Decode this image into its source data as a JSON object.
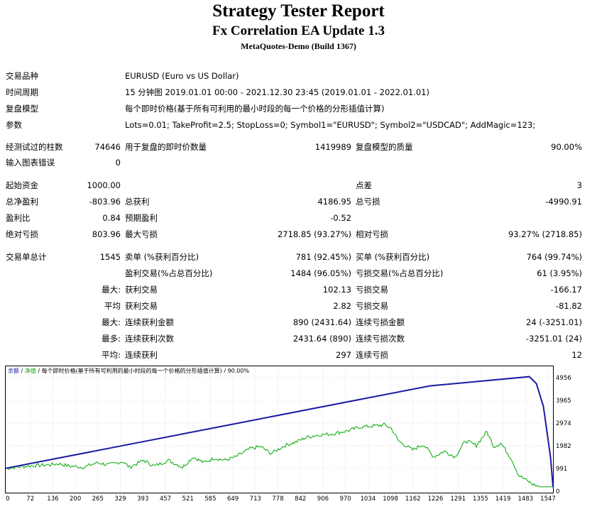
{
  "title": "Strategy Tester Report",
  "subtitle": "Fx Correlation EA Update 1.3",
  "build": "MetaQuotes-Demo (Build 1367)",
  "settings": {
    "symbol_label": "交易品种",
    "symbol_value": "EURUSD (Euro vs US Dollar)",
    "period_label": "时间周期",
    "period_value": "15 分钟图 2019.01.01 00:00 - 2021.12.30 23:45 (2019.01.01 - 2022.01.01)",
    "model_label": "复盘模型",
    "model_value": "每个即时价格(基于所有可利用的最小时段的每一个价格的分形插值计算)",
    "params_label": "参数",
    "params_value": "Lots=0.01; TakeProfit=2.5; StopLoss=0; Symbol1=\"EURUSD\"; Symbol2=\"USDCAD\"; AddMagic=123;"
  },
  "stats": {
    "bars_label": "经测试过的柱数",
    "bars_value": "74646",
    "ticks_label": "用于复盘的即时价数量",
    "ticks_value": "1419989",
    "quality_label": "复盘模型的质量",
    "quality_value": "90.00%",
    "errors_label": "输入图表错误",
    "errors_value": "0",
    "deposit_label": "起始资金",
    "deposit_value": "1000.00",
    "spread_label": "点差",
    "spread_value": "3",
    "net_label": "总净盈利",
    "net_value": "-803.96",
    "gross_profit_label": "总获利",
    "gross_profit_value": "4186.95",
    "gross_loss_label": "总亏损",
    "gross_loss_value": "-4990.91",
    "pf_label": "盈利比",
    "pf_value": "0.84",
    "payoff_label": "预期盈利",
    "payoff_value": "-0.52",
    "abs_dd_label": "绝对亏损",
    "abs_dd_value": "803.96",
    "max_dd_label": "最大亏损",
    "max_dd_value": "2718.85 (93.27%)",
    "rel_dd_label": "相对亏损",
    "rel_dd_value": "93.27% (2718.85)",
    "trades_label": "交易单总计",
    "trades_value": "1545",
    "short_label": "卖单 (%获利百分比)",
    "short_value": "781 (92.45%)",
    "long_label": "买单 (%获利百分比)",
    "long_value": "764 (99.74%)",
    "profit_trades_label": "盈利交易(%占总百分比)",
    "profit_trades_value": "1484 (96.05%)",
    "loss_trades_label": "亏损交易(%占总百分比)",
    "loss_trades_value": "61 (3.95%)",
    "max_prefix": "最大:",
    "largest_win_label": "获利交易",
    "largest_win_value": "102.13",
    "largest_loss_label": "亏损交易",
    "largest_loss_value": "-166.17",
    "avg_prefix": "平均",
    "avg_win_label": "获利交易",
    "avg_win_value": "2.82",
    "avg_loss_label": "亏损交易",
    "avg_loss_value": "-81.82",
    "max2_prefix": "最大:",
    "max_consec_win_amt_label": "连续获利金额",
    "max_consec_win_amt_value": "890 (2431.64)",
    "max_consec_loss_amt_label": "连续亏损金额",
    "max_consec_loss_amt_value": "24 (-3251.01)",
    "most_prefix": "最多:",
    "max_consec_win_cnt_label": "连续获利次数",
    "max_consec_win_cnt_value": "2431.64 (890)",
    "max_consec_loss_cnt_label": "连续亏损次数",
    "max_consec_loss_cnt_value": "-3251.01 (24)",
    "avg2_prefix": "平均:",
    "avg_consec_win_label": "连续获利",
    "avg_consec_win_value": "297",
    "avg_consec_loss_label": "连续亏损",
    "avg_consec_loss_value": "12"
  },
  "chart_legend": {
    "balance": "余额",
    "sep1": " / ",
    "equity": "净值",
    "rest": " / 每个即时价格(基于所有可利用的最小时段的每一个价格的分形插值计算) / 90.00%"
  },
  "colors": {
    "balance": "#1a1aa6",
    "equity": "#00a800",
    "grid": "#c8c8c8"
  },
  "chart_data": {
    "type": "line",
    "xlabel": "",
    "ylabel": "",
    "x_ticks": [
      "0",
      "72",
      "136",
      "200",
      "265",
      "329",
      "393",
      "457",
      "521",
      "585",
      "649",
      "713",
      "778",
      "842",
      "906",
      "970",
      "1034",
      "1098",
      "1162",
      "1226",
      "1291",
      "1355",
      "1419",
      "1483",
      "1547"
    ],
    "y_ticks": [
      "4956",
      "3965",
      "2974",
      "1982",
      "991",
      "0"
    ],
    "ylim": [
      0,
      4956
    ],
    "xlim": [
      0,
      1547
    ],
    "series": [
      {
        "name": "余额",
        "points": [
          [
            0,
            1000
          ],
          [
            300,
            1900
          ],
          [
            600,
            2800
          ],
          [
            900,
            3700
          ],
          [
            1200,
            4600
          ],
          [
            1480,
            5000
          ],
          [
            1500,
            4700
          ],
          [
            1520,
            3700
          ],
          [
            1540,
            1500
          ],
          [
            1547,
            196
          ]
        ]
      },
      {
        "name": "净值",
        "points": [
          [
            0,
            1000
          ],
          [
            60,
            1100
          ],
          [
            120,
            1150
          ],
          [
            150,
            1200
          ],
          [
            180,
            1100
          ],
          [
            220,
            1050
          ],
          [
            260,
            1250
          ],
          [
            290,
            1150
          ],
          [
            330,
            1300
          ],
          [
            350,
            1050
          ],
          [
            390,
            1350
          ],
          [
            420,
            1100
          ],
          [
            460,
            1350
          ],
          [
            500,
            1050
          ],
          [
            530,
            1500
          ],
          [
            560,
            1250
          ],
          [
            590,
            1450
          ],
          [
            620,
            1350
          ],
          [
            650,
            1500
          ],
          [
            690,
            1850
          ],
          [
            720,
            1950
          ],
          [
            750,
            1650
          ],
          [
            790,
            2000
          ],
          [
            820,
            2150
          ],
          [
            850,
            2350
          ],
          [
            880,
            2450
          ],
          [
            920,
            2500
          ],
          [
            970,
            2650
          ],
          [
            1000,
            2800
          ],
          [
            1040,
            2850
          ],
          [
            1070,
            2900
          ],
          [
            1090,
            2750
          ],
          [
            1110,
            2200
          ],
          [
            1150,
            1800
          ],
          [
            1180,
            2050
          ],
          [
            1210,
            1500
          ],
          [
            1240,
            1750
          ],
          [
            1270,
            1500
          ],
          [
            1300,
            2200
          ],
          [
            1330,
            2000
          ],
          [
            1360,
            2600
          ],
          [
            1380,
            1950
          ],
          [
            1400,
            2100
          ],
          [
            1430,
            1400
          ],
          [
            1450,
            700
          ],
          [
            1470,
            500
          ],
          [
            1490,
            300
          ],
          [
            1510,
            196
          ],
          [
            1547,
            196
          ]
        ]
      }
    ]
  }
}
